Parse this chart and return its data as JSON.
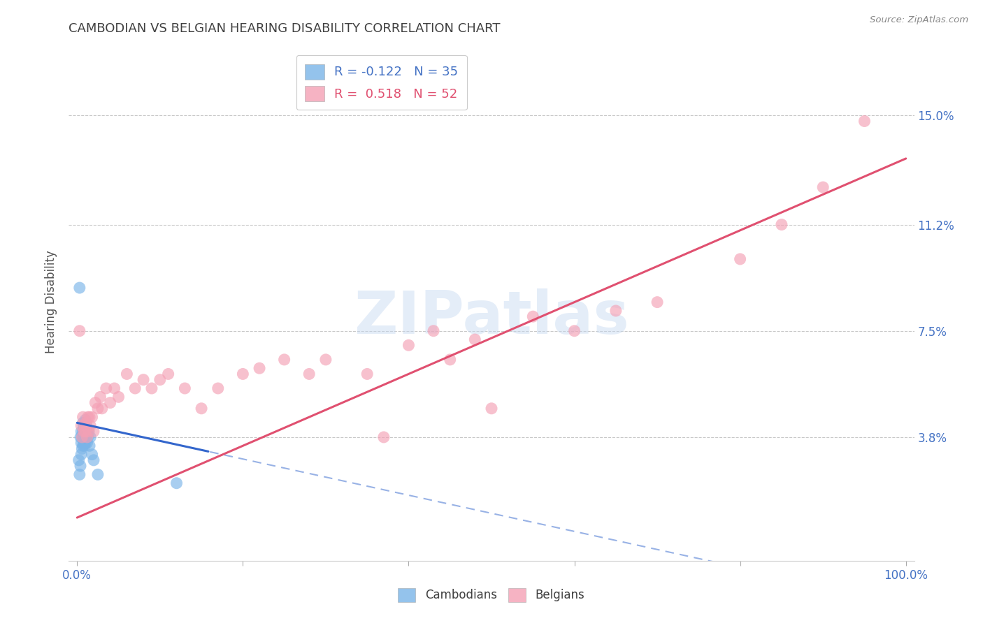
{
  "title": "CAMBODIAN VS BELGIAN HEARING DISABILITY CORRELATION CHART",
  "source": "Source: ZipAtlas.com",
  "ylabel": "Hearing Disability",
  "cambodian_color": "#7ab4e8",
  "belgian_color": "#f4a0b5",
  "blue_line_color": "#3366cc",
  "pink_line_color": "#e05070",
  "label_color": "#4472c4",
  "title_color": "#404040",
  "watermark": "ZIPatlas",
  "yticks": [
    0.038,
    0.075,
    0.112,
    0.15
  ],
  "ytick_labels": [
    "3.8%",
    "7.5%",
    "11.2%",
    "15.0%"
  ],
  "xlim": [
    -0.01,
    1.01
  ],
  "ylim": [
    -0.005,
    0.175
  ],
  "cambodian_R": -0.122,
  "cambodian_N": 35,
  "belgian_R": 0.518,
  "belgian_N": 52,
  "cambodian_x": [
    0.002,
    0.003,
    0.004,
    0.004,
    0.005,
    0.005,
    0.005,
    0.006,
    0.006,
    0.007,
    0.007,
    0.007,
    0.008,
    0.008,
    0.008,
    0.009,
    0.009,
    0.009,
    0.01,
    0.01,
    0.01,
    0.01,
    0.011,
    0.011,
    0.012,
    0.012,
    0.013,
    0.014,
    0.015,
    0.016,
    0.018,
    0.02,
    0.025,
    0.12,
    0.003
  ],
  "cambodian_y": [
    0.03,
    0.025,
    0.038,
    0.028,
    0.032,
    0.036,
    0.04,
    0.034,
    0.038,
    0.035,
    0.04,
    0.043,
    0.036,
    0.038,
    0.042,
    0.035,
    0.04,
    0.042,
    0.036,
    0.038,
    0.041,
    0.044,
    0.038,
    0.042,
    0.036,
    0.04,
    0.038,
    0.04,
    0.035,
    0.038,
    0.032,
    0.03,
    0.025,
    0.022,
    0.09
  ],
  "belgian_x": [
    0.003,
    0.005,
    0.006,
    0.007,
    0.008,
    0.009,
    0.01,
    0.011,
    0.012,
    0.013,
    0.014,
    0.015,
    0.016,
    0.018,
    0.02,
    0.022,
    0.025,
    0.028,
    0.03,
    0.035,
    0.04,
    0.045,
    0.05,
    0.06,
    0.07,
    0.08,
    0.09,
    0.1,
    0.11,
    0.13,
    0.15,
    0.17,
    0.2,
    0.22,
    0.25,
    0.28,
    0.3,
    0.35,
    0.37,
    0.4,
    0.43,
    0.45,
    0.48,
    0.5,
    0.55,
    0.6,
    0.65,
    0.7,
    0.8,
    0.85,
    0.9,
    0.95
  ],
  "belgian_y": [
    0.075,
    0.042,
    0.038,
    0.045,
    0.04,
    0.042,
    0.04,
    0.043,
    0.038,
    0.045,
    0.04,
    0.045,
    0.042,
    0.045,
    0.04,
    0.05,
    0.048,
    0.052,
    0.048,
    0.055,
    0.05,
    0.055,
    0.052,
    0.06,
    0.055,
    0.058,
    0.055,
    0.058,
    0.06,
    0.055,
    0.048,
    0.055,
    0.06,
    0.062,
    0.065,
    0.06,
    0.065,
    0.06,
    0.038,
    0.07,
    0.075,
    0.065,
    0.072,
    0.048,
    0.08,
    0.075,
    0.082,
    0.085,
    0.1,
    0.112,
    0.125,
    0.148
  ]
}
